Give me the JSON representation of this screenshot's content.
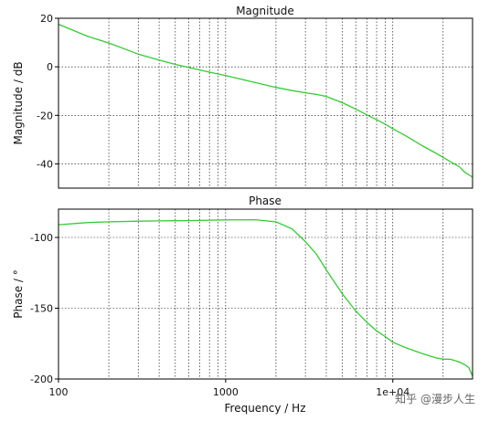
{
  "chart_data": [
    {
      "type": "line",
      "title": "Magnitude",
      "xlabel": "",
      "ylabel": "Magnitude / dB",
      "xscale": "log",
      "xlim": [
        100,
        30000
      ],
      "ylim": [
        -50,
        20
      ],
      "yticks": [
        20,
        0,
        -20,
        -40
      ],
      "grid": true,
      "line_color": "#33cc33",
      "series": [
        {
          "x": [
            100,
            150,
            200,
            300,
            400,
            500,
            600,
            700,
            800,
            1000,
            1500,
            2000,
            2500,
            3000,
            3500,
            4000,
            5000,
            6000,
            7000,
            8000,
            9000,
            10000,
            12000,
            15000,
            18000,
            20000,
            22000,
            25000,
            27000,
            30000
          ],
          "y": [
            17.5,
            12.5,
            9.8,
            5.2,
            2.8,
            1.0,
            -0.3,
            -1.3,
            -2.2,
            -3.6,
            -6.5,
            -8.5,
            -9.8,
            -10.7,
            -11.4,
            -12.2,
            -14.8,
            -17.4,
            -19.8,
            -21.8,
            -23.6,
            -25.5,
            -28.5,
            -32.5,
            -35.5,
            -37.3,
            -39.0,
            -41.2,
            -43.5,
            -45.5
          ]
        }
      ]
    },
    {
      "type": "line",
      "title": "Phase",
      "xlabel": "Frequency / Hz",
      "ylabel": "Phase / °",
      "xscale": "log",
      "xlim": [
        100,
        30000
      ],
      "ylim": [
        -200,
        -80
      ],
      "yticks": [
        -100,
        -150,
        -200
      ],
      "xticks": [
        "100",
        "1000",
        "1e+04"
      ],
      "grid": true,
      "line_color": "#33cc33",
      "series": [
        {
          "x": [
            100,
            150,
            200,
            300,
            400,
            500,
            600,
            700,
            800,
            1000,
            1500,
            2000,
            2500,
            3000,
            3500,
            4000,
            5000,
            6000,
            7000,
            8000,
            9000,
            10000,
            12000,
            15000,
            18000,
            20000,
            22000,
            25000,
            27000,
            28500,
            30000
          ],
          "y": [
            -91,
            -89.5,
            -89,
            -88.5,
            -88.3,
            -88.2,
            -88.1,
            -88,
            -87.8,
            -87.6,
            -87.5,
            -89,
            -94,
            -103,
            -112,
            -123,
            -140,
            -152,
            -160,
            -166,
            -170,
            -174,
            -178,
            -182,
            -185,
            -186,
            -186,
            -188,
            -190,
            -192,
            -198
          ]
        }
      ]
    }
  ],
  "watermark": "知乎 @漫步人生"
}
